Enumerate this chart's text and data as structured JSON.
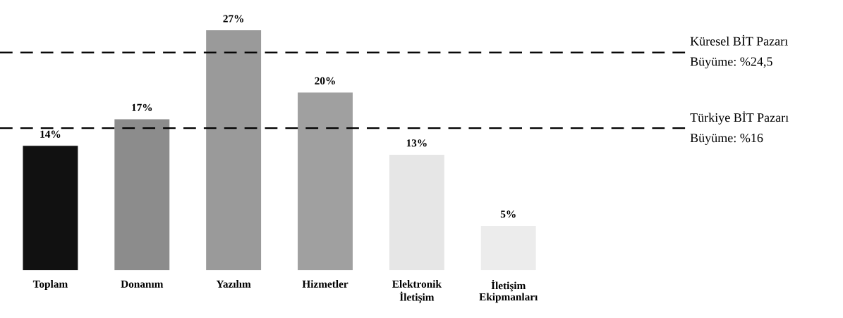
{
  "chart_data": {
    "type": "bar",
    "categories": [
      "Toplam",
      "Donanım",
      "Yazılım",
      "Hizmetler",
      "Elektronik\nİletişim",
      "İletişim\nEkipmanları"
    ],
    "values": [
      14,
      17,
      27,
      20,
      13,
      5
    ],
    "colors": [
      "#111111",
      "#8c8c8c",
      "#9a9a9a",
      "#a0a0a0",
      "#e6e6e6",
      "#ececec"
    ],
    "value_labels": [
      "14%",
      "17%",
      "27%",
      "20%",
      "13%",
      "5%"
    ],
    "ref_lines": [
      {
        "axis": "y",
        "value": 24.5,
        "label": "Küresel BİT Pazarı\nBüyüme: %24,5",
        "color": "#000000",
        "line_style": "dashed"
      },
      {
        "axis": "y",
        "value": 16,
        "label": "Türkiye BİT Pazarı\nBüyüme: %16",
        "color": "#000000",
        "line_style": "dashed"
      }
    ],
    "grid": false,
    "legend": false
  }
}
